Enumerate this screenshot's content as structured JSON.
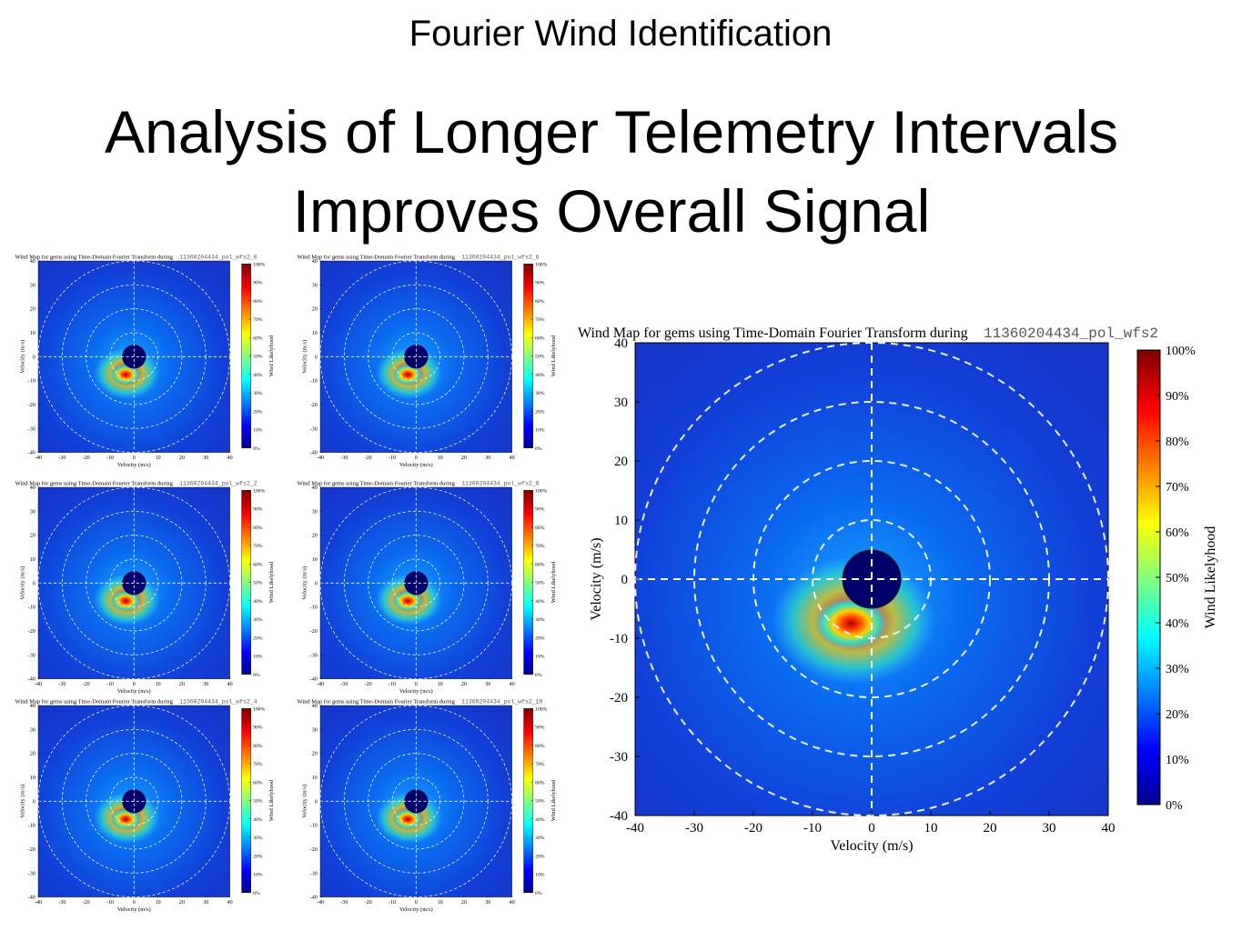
{
  "header": {
    "subtitle": "Fourier Wind Identification",
    "title": [
      "Analysis of Longer Telemetry Intervals",
      "Improves Overall Signal"
    ]
  },
  "axes": {
    "lim": [
      -40,
      40
    ],
    "ticks": [
      -40,
      -30,
      -20,
      -10,
      0,
      10,
      20,
      30,
      40
    ],
    "xlabel": "Velocity (m/s)",
    "ylabel": "Velocity (m/s)",
    "colorbar_label": "Wind Likelyhood",
    "colorbar_lim": [
      0,
      100
    ],
    "colorbar_ticks": [
      {
        "value": 0,
        "label": "0%"
      },
      {
        "value": 10,
        "label": "10%"
      },
      {
        "value": 20,
        "label": "20%"
      },
      {
        "value": 30,
        "label": "30%"
      },
      {
        "value": 40,
        "label": "40%"
      },
      {
        "value": 50,
        "label": "50%"
      },
      {
        "value": 60,
        "label": "60%"
      },
      {
        "value": 70,
        "label": "70%"
      },
      {
        "value": 80,
        "label": "80%"
      },
      {
        "value": 90,
        "label": "90%"
      },
      {
        "value": 100,
        "label": "100%"
      }
    ]
  },
  "plots": [
    {
      "title": "Wind Map for gems using Time-Domain Fourier Transform during",
      "run": "11360204434_pol_wfs2_0"
    },
    {
      "title": "Wind Map for gems using Time-Domain Fourier Transform during",
      "run": "11360204434_pol_wfs2_6"
    },
    {
      "title": "Wind Map for gems using Time-Domain Fourier Transform during",
      "run": "11360204434_pol_wfs2_2"
    },
    {
      "title": "Wind Map for gems using Time-Domain Fourier Transform during",
      "run": "11360204434_pol_wfs2_8"
    },
    {
      "title": "Wind Map for gems using Time-Domain Fourier Transform during",
      "run": "11360204434_pol_wfs2_4"
    },
    {
      "title": "Wind Map for gems using Time-Domain Fourier Transform during",
      "run": "11360204434_pol_wfs2_10"
    },
    {
      "title": "Wind Map for gems using Time-Domain Fourier Transform during",
      "run": "11360204434_pol_wfs2"
    }
  ]
}
